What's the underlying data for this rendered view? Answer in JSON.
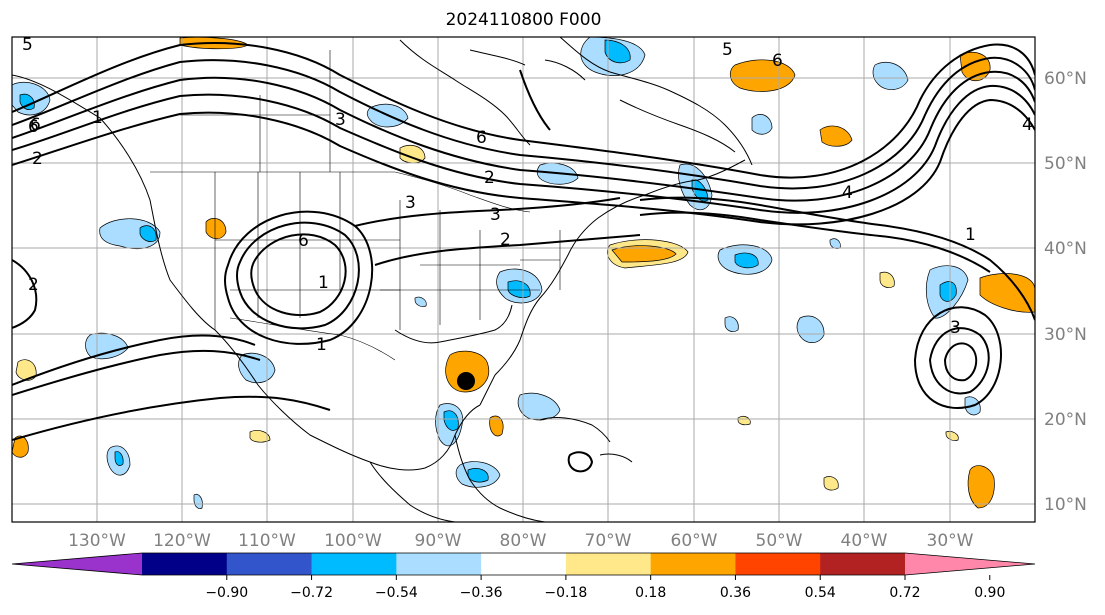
{
  "title": "2024110800 F000",
  "longitude_labels": [
    "130°W",
    "120°W",
    "110°W",
    "100°W",
    "90°W",
    "80°W",
    "70°W",
    "60°W",
    "50°W",
    "40°W",
    "30°W"
  ],
  "latitude_labels": [
    "60°N",
    "50°N",
    "40°N",
    "30°N",
    "20°N",
    "10°N"
  ],
  "colorbar": {
    "colors": [
      "#9933cc",
      "#000088",
      "#3355cc",
      "#00bbff",
      "#aaddff",
      "#ffffff",
      "#ffe88a",
      "#ffa500",
      "#ff4400",
      "#b22222",
      "#ff88aa"
    ],
    "tick_labels": [
      "−0.90",
      "−0.72",
      "−0.54",
      "−0.36",
      "−0.18",
      "0.18",
      "0.36",
      "0.54",
      "0.72",
      "0.90"
    ]
  },
  "contour_labels": [
    "5",
    "6",
    "3",
    "6",
    "2",
    "3",
    "2",
    "6",
    "5",
    "6",
    "4",
    "1",
    "3",
    "2",
    "6",
    "1",
    "4",
    "1",
    "3",
    "1",
    "2"
  ],
  "marker": {
    "name": "storm-center",
    "lon": -86.5,
    "lat": 24.5
  }
}
